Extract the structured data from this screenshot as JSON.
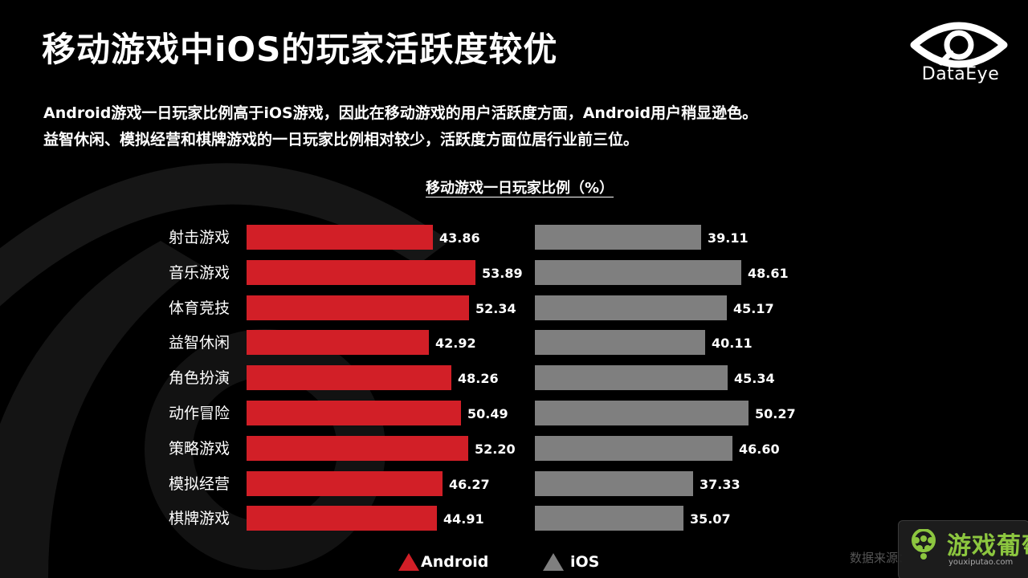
{
  "page": {
    "title": "移动游戏中iOS的玩家活跃度较优",
    "desc_line1": "Android游戏一日玩家比例高于iOS游戏，因此在移动游戏的用户活跃度方面，Android用户稍显逊色。",
    "desc_line2": "益智休闲、模拟经营和棋牌游戏的一日玩家比例相对较少，活跃度方面位居行业前三位。",
    "logo_text": "DataEye",
    "source_text": "数据来源：",
    "watermark_cn": "游戏葡萄",
    "watermark_en": "youxiputao.com"
  },
  "colors": {
    "android": "#d21f27",
    "ios": "#7f7f7f",
    "background": "#000000",
    "watermark_green": "#8cc63f"
  },
  "chart_data": {
    "type": "bar",
    "orientation": "horizontal",
    "title": "移动游戏一日玩家比例（%）",
    "categories": [
      "射击游戏",
      "音乐游戏",
      "体育竞技",
      "益智休闲",
      "角色扮演",
      "动作冒险",
      "策略游戏",
      "模拟经营",
      "棋牌游戏"
    ],
    "series": [
      {
        "name": "Android",
        "values": [
          43.86,
          53.89,
          52.34,
          42.92,
          48.26,
          50.49,
          52.2,
          46.27,
          44.91
        ],
        "labels": [
          "43.86",
          "53.89",
          "52.34",
          "42.92",
          "48.26",
          "50.49",
          "52.20",
          "46.27",
          "44.91"
        ]
      },
      {
        "name": "iOS",
        "values": [
          39.11,
          48.61,
          45.17,
          40.11,
          45.34,
          50.27,
          46.6,
          37.33,
          35.07
        ],
        "labels": [
          "39.11",
          "48.61",
          "45.17",
          "40.11",
          "45.34",
          "50.27",
          "46.60",
          "37.33",
          "35.07"
        ]
      }
    ],
    "legend_position": "bottom",
    "grid": false
  }
}
